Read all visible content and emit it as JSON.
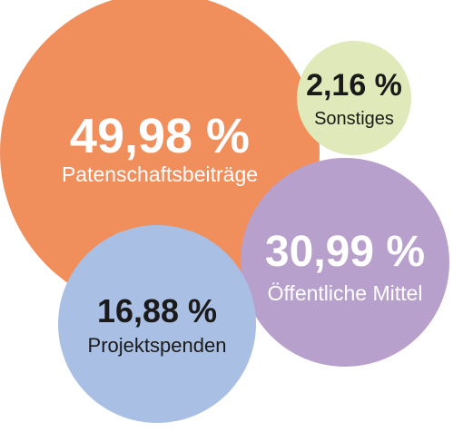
{
  "chart_data": {
    "type": "bubble",
    "items": [
      {
        "label": "Patenschaftsbeiträge",
        "value_text": "49,98 %",
        "value": 49.98,
        "color": "#f08e5c",
        "text_color": "#ffffff"
      },
      {
        "label": "Sonstiges",
        "value_text": "2,16 %",
        "value": 2.16,
        "color": "#dfe9ba",
        "text_color": "#1a1a1a"
      },
      {
        "label": "Öffentliche Mittel",
        "value_text": "30,99 %",
        "value": 30.99,
        "color": "#b8a0cc",
        "text_color": "#ffffff"
      },
      {
        "label": "Projektspenden",
        "value_text": "16,88 %",
        "value": 16.88,
        "color": "#a9bfe3",
        "text_color": "#1a1a1a"
      }
    ]
  }
}
